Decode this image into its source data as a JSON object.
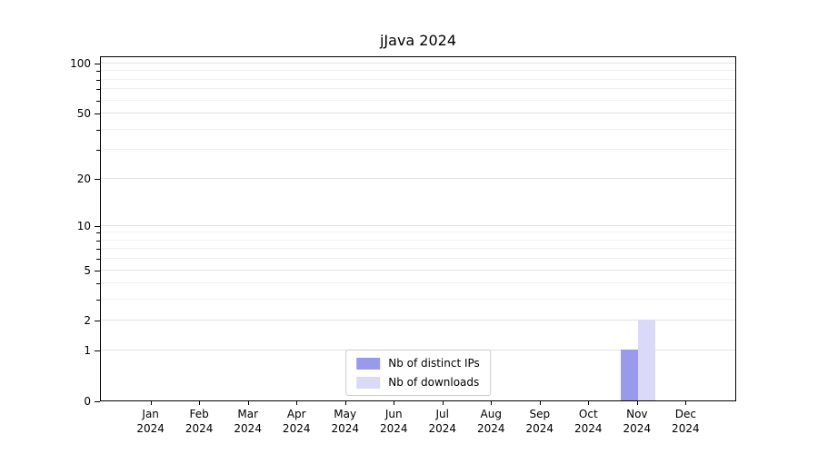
{
  "chart_data": {
    "type": "bar",
    "title": "jJava 2024",
    "categories": [
      "Jan",
      "Feb",
      "Mar",
      "Apr",
      "May",
      "Jun",
      "Jul",
      "Aug",
      "Sep",
      "Oct",
      "Nov",
      "Dec"
    ],
    "category_year": "2024",
    "series": [
      {
        "name": "Nb of distinct IPs",
        "color": "#9a9aec",
        "values": [
          0,
          0,
          0,
          0,
          0,
          0,
          0,
          0,
          0,
          0,
          1,
          0
        ]
      },
      {
        "name": "Nb of downloads",
        "color": "#dadaf8",
        "values": [
          0,
          0,
          0,
          0,
          0,
          0,
          0,
          0,
          0,
          0,
          2,
          0
        ]
      }
    ],
    "xlabel": "",
    "ylabel": "",
    "y_scale": "log1p",
    "y_ticks": [
      0,
      1,
      2,
      5,
      10,
      20,
      50,
      100
    ],
    "y_minor_ticks": [
      3,
      4,
      6,
      7,
      8,
      9,
      30,
      40,
      60,
      70,
      80,
      90
    ],
    "ylim": [
      0,
      110
    ],
    "grid": true,
    "legend_position": "lower center",
    "colors": {
      "major_grid": "#e2e2e2",
      "minor_grid": "#f0f0f0",
      "axis": "#000000",
      "legend_border": "#cccccc"
    }
  }
}
